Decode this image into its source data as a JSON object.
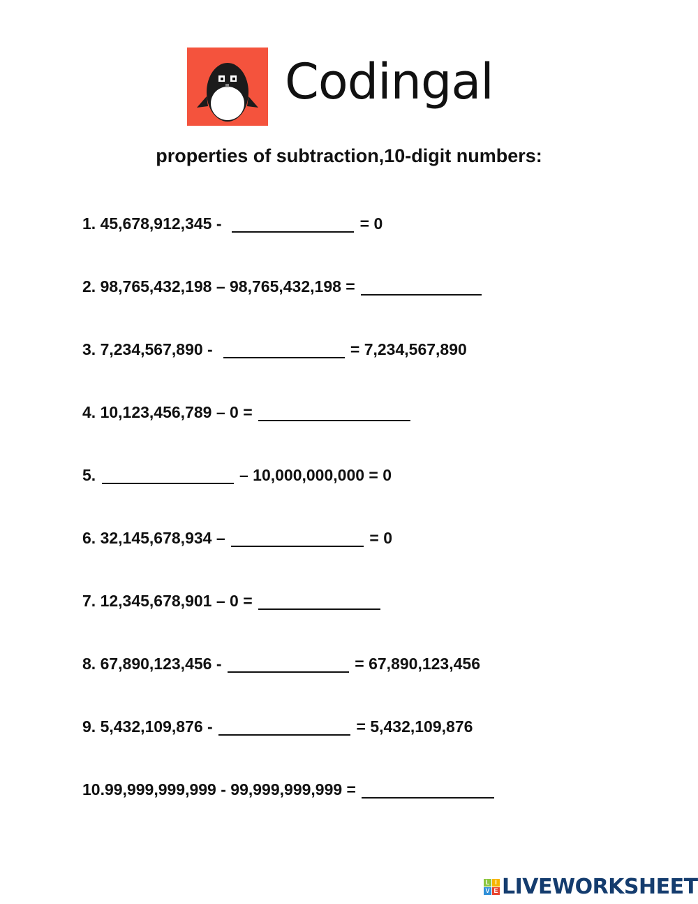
{
  "logo": {
    "brand": "Codingal",
    "brand_color": "#f4533d"
  },
  "title": "properties of subtraction,10-digit numbers:",
  "questions": [
    {
      "prefix": "1. 45,678,912,345 -  ",
      "suffix": " = 0",
      "blank_position": "middle"
    },
    {
      "prefix": "2. 98,765,432,198 – 98,765,432,198 = ",
      "suffix": "",
      "blank_position": "end"
    },
    {
      "prefix": "3. 7,234,567,890 -  ",
      "suffix": " = 7,234,567,890",
      "blank_position": "middle"
    },
    {
      "prefix": "4. 10,123,456,789 – 0 = ",
      "suffix": "",
      "blank_position": "end"
    },
    {
      "prefix": "5. ",
      "suffix": " – 10,000,000,000 = 0",
      "blank_position": "start"
    },
    {
      "prefix": "6. 32,145,678,934 – ",
      "suffix": " = 0",
      "blank_position": "middle"
    },
    {
      "prefix": "7. 12,345,678,901 – 0 = ",
      "suffix": "",
      "blank_position": "end"
    },
    {
      "prefix": "8. 67,890,123,456 - ",
      "suffix": " = 67,890,123,456",
      "blank_position": "middle"
    },
    {
      "prefix": "9. 5,432,109,876 - ",
      "suffix": " = 5,432,109,876",
      "blank_position": "middle"
    },
    {
      "prefix": "10.99,999,999,999 - 99,999,999,999 = ",
      "suffix": "",
      "blank_position": "end"
    }
  ],
  "footer": {
    "brand": "LIVEWORKSHEETS",
    "tiles": [
      "L",
      "I",
      "V",
      "E"
    ],
    "tile_colors": [
      "#8cc63f",
      "#f7b500",
      "#2f8fd8",
      "#e8432e"
    ],
    "brand_color": "#143c6e"
  }
}
